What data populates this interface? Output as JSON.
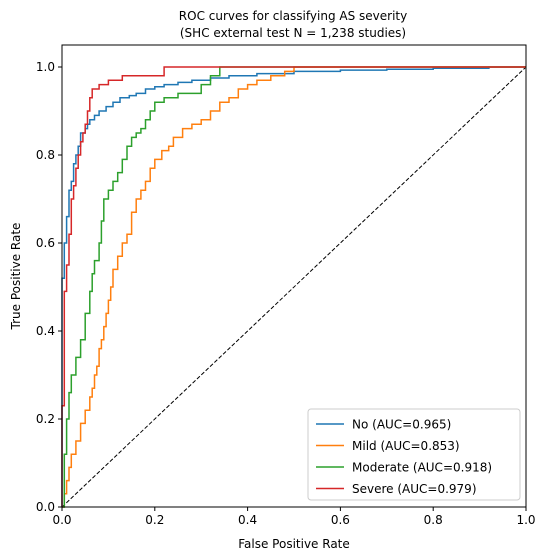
{
  "chart_data": {
    "type": "line",
    "title": "ROC curves for classifying AS severity",
    "subtitle": "(SHC external test N = 1,238 studies)",
    "xlabel": "False Positive Rate",
    "ylabel": "True Positive Rate",
    "xlim": [
      0,
      1
    ],
    "ylim": [
      0,
      1.05
    ],
    "xticks": [
      "0.0",
      "0.2",
      "0.4",
      "0.6",
      "0.8",
      "1.0"
    ],
    "yticks": [
      "0.0",
      "0.2",
      "0.4",
      "0.6",
      "0.8",
      "1.0"
    ],
    "grid": false,
    "legend_position": "lower-right",
    "diagonal": {
      "style": "dashed",
      "color": "#000000",
      "points": [
        [
          0,
          0
        ],
        [
          1,
          1
        ]
      ]
    },
    "series": [
      {
        "name": "No (AUC=0.965)",
        "color": "#1f77b4",
        "points": [
          [
            0,
            0
          ],
          [
            0,
            0.52
          ],
          [
            0.005,
            0.56
          ],
          [
            0.005,
            0.6
          ],
          [
            0.01,
            0.61
          ],
          [
            0.01,
            0.66
          ],
          [
            0.015,
            0.68
          ],
          [
            0.015,
            0.72
          ],
          [
            0.02,
            0.74
          ],
          [
            0.025,
            0.78
          ],
          [
            0.03,
            0.8
          ],
          [
            0.035,
            0.82
          ],
          [
            0.04,
            0.85
          ],
          [
            0.05,
            0.86
          ],
          [
            0.055,
            0.87
          ],
          [
            0.06,
            0.88
          ],
          [
            0.07,
            0.89
          ],
          [
            0.08,
            0.9
          ],
          [
            0.095,
            0.91
          ],
          [
            0.11,
            0.92
          ],
          [
            0.125,
            0.93
          ],
          [
            0.145,
            0.935
          ],
          [
            0.16,
            0.94
          ],
          [
            0.18,
            0.95
          ],
          [
            0.2,
            0.955
          ],
          [
            0.22,
            0.96
          ],
          [
            0.25,
            0.965
          ],
          [
            0.28,
            0.97
          ],
          [
            0.32,
            0.975
          ],
          [
            0.36,
            0.98
          ],
          [
            0.42,
            0.985
          ],
          [
            0.5,
            0.99
          ],
          [
            0.6,
            0.993
          ],
          [
            0.7,
            0.995
          ],
          [
            0.8,
            0.997
          ],
          [
            0.92,
            1.0
          ],
          [
            1,
            1
          ]
        ]
      },
      {
        "name": "Mild (AUC=0.853)",
        "color": "#ff7f0e",
        "points": [
          [
            0,
            0
          ],
          [
            0.005,
            0.03
          ],
          [
            0.01,
            0.06
          ],
          [
            0.015,
            0.09
          ],
          [
            0.02,
            0.12
          ],
          [
            0.03,
            0.15
          ],
          [
            0.04,
            0.19
          ],
          [
            0.05,
            0.22
          ],
          [
            0.06,
            0.25
          ],
          [
            0.065,
            0.27
          ],
          [
            0.07,
            0.3
          ],
          [
            0.075,
            0.32
          ],
          [
            0.08,
            0.36
          ],
          [
            0.085,
            0.38
          ],
          [
            0.09,
            0.41
          ],
          [
            0.095,
            0.44
          ],
          [
            0.1,
            0.47
          ],
          [
            0.105,
            0.5
          ],
          [
            0.11,
            0.54
          ],
          [
            0.12,
            0.57
          ],
          [
            0.13,
            0.6
          ],
          [
            0.14,
            0.62
          ],
          [
            0.15,
            0.67
          ],
          [
            0.16,
            0.7
          ],
          [
            0.17,
            0.72
          ],
          [
            0.18,
            0.74
          ],
          [
            0.19,
            0.77
          ],
          [
            0.2,
            0.79
          ],
          [
            0.215,
            0.81
          ],
          [
            0.23,
            0.82
          ],
          [
            0.24,
            0.84
          ],
          [
            0.26,
            0.86
          ],
          [
            0.28,
            0.87
          ],
          [
            0.3,
            0.88
          ],
          [
            0.32,
            0.9
          ],
          [
            0.34,
            0.92
          ],
          [
            0.36,
            0.93
          ],
          [
            0.38,
            0.95
          ],
          [
            0.4,
            0.96
          ],
          [
            0.42,
            0.97
          ],
          [
            0.45,
            0.98
          ],
          [
            0.48,
            0.99
          ],
          [
            0.5,
            1.0
          ],
          [
            1,
            1
          ]
        ]
      },
      {
        "name": "Moderate (AUC=0.918)",
        "color": "#2ca02c",
        "points": [
          [
            0,
            0
          ],
          [
            0.005,
            0.12
          ],
          [
            0.01,
            0.2
          ],
          [
            0.015,
            0.26
          ],
          [
            0.02,
            0.3
          ],
          [
            0.03,
            0.34
          ],
          [
            0.04,
            0.38
          ],
          [
            0.05,
            0.44
          ],
          [
            0.06,
            0.49
          ],
          [
            0.065,
            0.53
          ],
          [
            0.07,
            0.56
          ],
          [
            0.08,
            0.6
          ],
          [
            0.085,
            0.65
          ],
          [
            0.09,
            0.7
          ],
          [
            0.1,
            0.72
          ],
          [
            0.11,
            0.74
          ],
          [
            0.12,
            0.76
          ],
          [
            0.13,
            0.79
          ],
          [
            0.14,
            0.82
          ],
          [
            0.15,
            0.84
          ],
          [
            0.16,
            0.85
          ],
          [
            0.17,
            0.86
          ],
          [
            0.18,
            0.88
          ],
          [
            0.19,
            0.9
          ],
          [
            0.2,
            0.92
          ],
          [
            0.22,
            0.93
          ],
          [
            0.25,
            0.94
          ],
          [
            0.28,
            0.94
          ],
          [
            0.3,
            0.96
          ],
          [
            0.32,
            0.98
          ],
          [
            0.34,
            1.0
          ],
          [
            1,
            1
          ]
        ]
      },
      {
        "name": "Severe (AUC=0.979)",
        "color": "#d62728",
        "points": [
          [
            0,
            0
          ],
          [
            0,
            0.23
          ],
          [
            0.005,
            0.49
          ],
          [
            0.01,
            0.55
          ],
          [
            0.015,
            0.62
          ],
          [
            0.02,
            0.7
          ],
          [
            0.025,
            0.73
          ],
          [
            0.03,
            0.77
          ],
          [
            0.035,
            0.8
          ],
          [
            0.04,
            0.83
          ],
          [
            0.045,
            0.85
          ],
          [
            0.05,
            0.87
          ],
          [
            0.055,
            0.9
          ],
          [
            0.06,
            0.93
          ],
          [
            0.065,
            0.95
          ],
          [
            0.08,
            0.96
          ],
          [
            0.1,
            0.97
          ],
          [
            0.13,
            0.98
          ],
          [
            0.17,
            0.98
          ],
          [
            0.22,
            1.0
          ],
          [
            1,
            1
          ]
        ]
      }
    ]
  }
}
